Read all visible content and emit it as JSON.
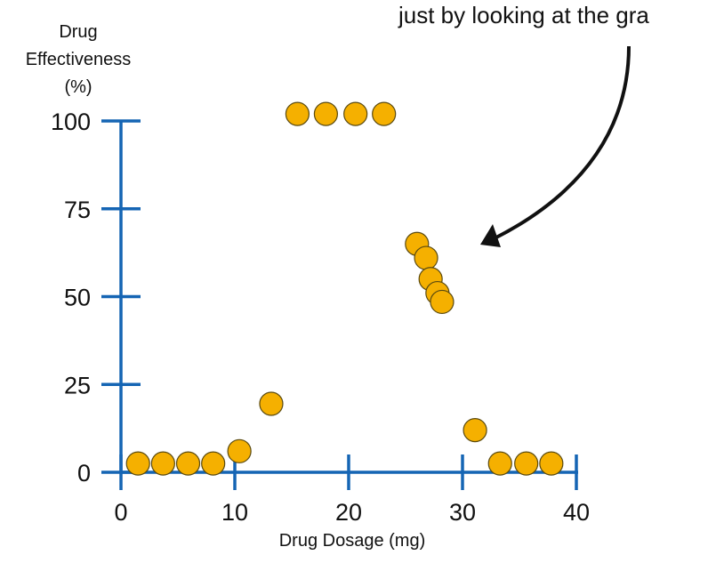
{
  "chart_data": {
    "type": "scatter",
    "ylabel_lines": [
      "Drug",
      "Effectiveness",
      "(%)"
    ],
    "xlabel": "Drug Dosage (mg)",
    "xlim": [
      0,
      40
    ],
    "ylim": [
      0,
      100
    ],
    "x_ticks": [
      0,
      10,
      20,
      30,
      40
    ],
    "y_ticks": [
      0,
      25,
      50,
      75,
      100
    ],
    "grid": false,
    "annotation_text": "just by looking at the gra",
    "colors": {
      "axis": "#1565b4",
      "point_fill": "#f5b000",
      "point_stroke": "#5a4a10",
      "arrow": "#111111"
    },
    "points": [
      {
        "x": 1.5,
        "y": 2.5
      },
      {
        "x": 3.7,
        "y": 2.5
      },
      {
        "x": 5.9,
        "y": 2.5
      },
      {
        "x": 8.1,
        "y": 2.5
      },
      {
        "x": 10.4,
        "y": 6
      },
      {
        "x": 13.2,
        "y": 19.5
      },
      {
        "x": 15.5,
        "y": 102
      },
      {
        "x": 18.0,
        "y": 102
      },
      {
        "x": 20.6,
        "y": 102
      },
      {
        "x": 23.1,
        "y": 102
      },
      {
        "x": 26.0,
        "y": 65
      },
      {
        "x": 26.8,
        "y": 61
      },
      {
        "x": 27.2,
        "y": 55
      },
      {
        "x": 27.8,
        "y": 51
      },
      {
        "x": 28.2,
        "y": 48.5
      },
      {
        "x": 31.1,
        "y": 12
      },
      {
        "x": 33.3,
        "y": 2.5
      },
      {
        "x": 35.6,
        "y": 2.5
      },
      {
        "x": 37.8,
        "y": 2.5
      }
    ]
  }
}
